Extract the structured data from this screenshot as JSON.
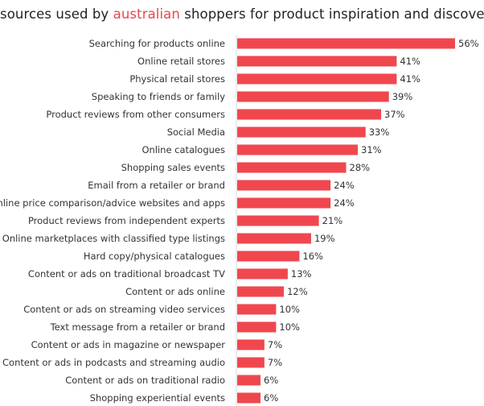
{
  "chart_data": {
    "type": "bar",
    "orientation": "horizontal",
    "title_parts": [
      "sources used by ",
      "australian",
      " shoppers for product inspiration and discovery"
    ],
    "title": "sources used by australian shoppers for product inspiration and discovery",
    "xlabel": "",
    "ylabel": "",
    "value_suffix": "%",
    "xlim": [
      0,
      56
    ],
    "grid": false,
    "legend": "none",
    "bar_color": "#f0474f",
    "highlight_color": "#e5484d",
    "categories": [
      "Searching for products online",
      "Online retail stores",
      "Physical retail stores",
      "Speaking to friends or family",
      "Product reviews from other consumers",
      "Social Media",
      "Online catalogues",
      "Shopping sales events",
      "Email from a retailer or brand",
      "Online price comparison/advice websites and apps",
      "Product reviews from independent experts",
      "Online marketplaces with classified type listings",
      "Hard copy/physical catalogues",
      "Content or ads on traditional broadcast TV",
      "Content or ads online",
      "Content or ads on streaming video services",
      "Text message from a retailer or brand",
      "Content or ads in magazine or newspaper",
      "Content or ads in podcasts and streaming audio",
      "Content or ads on traditional radio",
      "Shopping experiential events"
    ],
    "values": [
      56,
      41,
      41,
      39,
      37,
      33,
      31,
      28,
      24,
      24,
      21,
      19,
      16,
      13,
      12,
      10,
      10,
      7,
      7,
      6,
      6
    ]
  }
}
